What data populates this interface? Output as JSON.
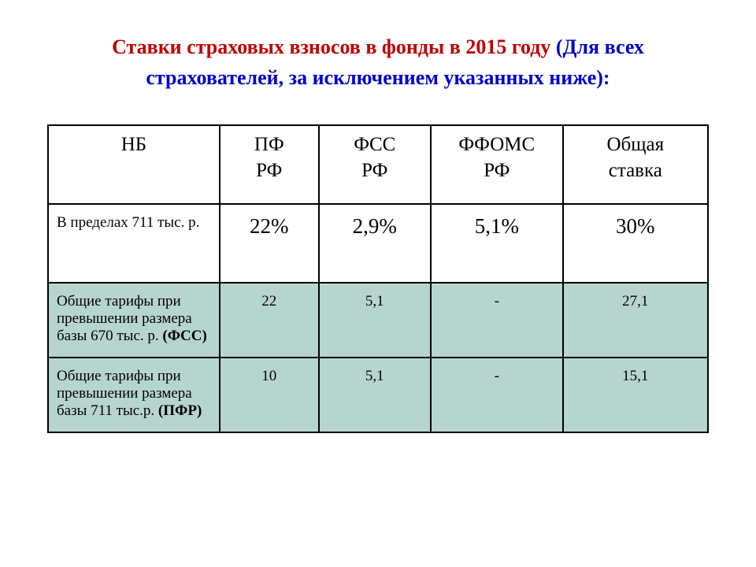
{
  "title": {
    "part1": "Ставки страховых взносов в фонды в 2015 году ",
    "part2": "(Для всех страхователей, за исключением указанных ниже):",
    "color1": "#c00000",
    "color2": "#0000cc",
    "fontsize": 26
  },
  "table": {
    "border_color": "#000000",
    "border_width": 2,
    "background_color": "#ffffff",
    "shaded_row_color": "#b7d5cf",
    "columns": [
      {
        "key": "nb",
        "label": "НБ",
        "width_pct": 26
      },
      {
        "key": "pf",
        "label": "ПФ\nРФ",
        "width_pct": 15
      },
      {
        "key": "fss",
        "label": "ФСС\nРФ",
        "width_pct": 17
      },
      {
        "key": "ffoms",
        "label": "ФФОМС\nРФ",
        "width_pct": 20
      },
      {
        "key": "total",
        "label": "Общая\nставка",
        "width_pct": 22
      }
    ],
    "header_fontsize": 25,
    "rows": [
      {
        "label_prefix": "В пределах 711 тыс. р.",
        "label_bold": "",
        "pf": "22%",
        "fss": "2,9%",
        "ffoms": "5,1%",
        "total": "30%",
        "shaded": false,
        "cell_fontsize": 27,
        "label_fontsize": 19
      },
      {
        "label_prefix": "Общие тарифы при превышении размера базы  670 тыс. р. ",
        "label_bold": "(ФСС)",
        "pf": "22",
        "fss": "5,1",
        "ffoms": "-",
        "total": "27,1",
        "shaded": true,
        "cell_fontsize": 19,
        "label_fontsize": 19
      },
      {
        "label_prefix": "Общие тарифы при превышении размера базы 711 тыс.р. ",
        "label_bold": "(ПФР)",
        "pf": "10",
        "fss": "5,1",
        "ffoms": "-",
        "total": "15,1",
        "shaded": true,
        "cell_fontsize": 19,
        "label_fontsize": 19
      }
    ]
  }
}
